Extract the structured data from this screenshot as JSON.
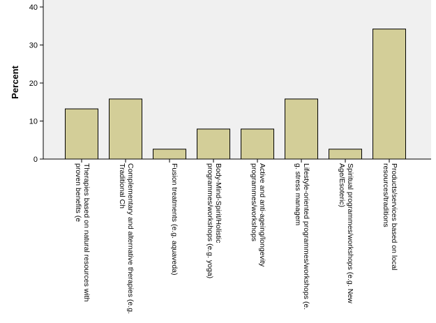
{
  "chart_data": {
    "type": "bar",
    "title": "",
    "xlabel": "",
    "ylabel": "Percent",
    "ylim": [
      0,
      40
    ],
    "yticks": [
      0,
      10,
      20,
      30,
      40
    ],
    "grid": false,
    "categories": [
      [
        "Therapies based on natural resources with",
        "proven benefits (e"
      ],
      [
        "Complementary and alternative therapies (e.g.",
        "Traditional Ch"
      ],
      [
        "Fusion treatments (e.g. aquaveda)"
      ],
      [
        "Body-Mind-Spirit/Holistic",
        "programmes/workshops (e.g. yoga)"
      ],
      [
        "Active and anti-ageing/longevity",
        "programmes/workshops"
      ],
      [
        "Lifestyle-oriented programmes/workshops (e.",
        "g. stress managem"
      ],
      [
        "Spiritual programmes/workshops (e.g. New",
        "Age/Esoteric)"
      ],
      [
        "Products/services based on local",
        "resources/traditions"
      ]
    ],
    "values": [
      13.2,
      15.8,
      2.6,
      7.9,
      7.9,
      15.8,
      2.6,
      34.2
    ],
    "colors": {
      "bar_fill": "#d3ce98",
      "bar_stroke": "#000000",
      "plot_bg": "#f0f0f0",
      "axis": "#000000"
    }
  }
}
